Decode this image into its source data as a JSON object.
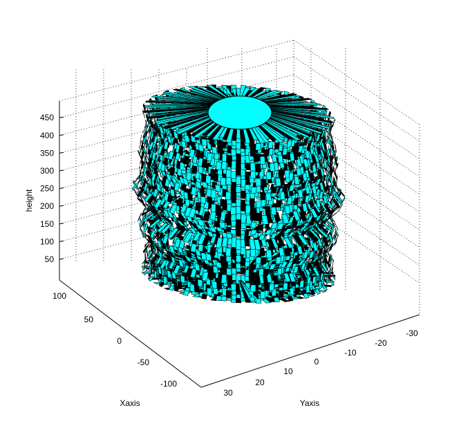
{
  "chart_data": {
    "type": "surface",
    "title": "",
    "xlabel": "Xaxis",
    "ylabel": "Yaxis",
    "zlabel": "height",
    "x_ticks": [
      100,
      50,
      0,
      -50,
      -100
    ],
    "y_ticks": [
      30,
      20,
      10,
      0,
      -10,
      -20,
      -30
    ],
    "z_ticks": [
      50,
      100,
      150,
      200,
      250,
      300,
      350,
      400,
      450
    ],
    "xlim": [
      -120,
      120
    ],
    "ylim": [
      -35,
      35
    ],
    "zlim": [
      0,
      500
    ],
    "grid": true,
    "colors": {
      "surface": "#00ffff",
      "edges": "#000000",
      "background": "#ffffff"
    },
    "profile": {
      "z": [
        0,
        10,
        20,
        40,
        60,
        80,
        100,
        120,
        140,
        160,
        180,
        200,
        220,
        240,
        260,
        280,
        300,
        320,
        340,
        360,
        380,
        400,
        420,
        440,
        460,
        480
      ],
      "radius": [
        12,
        95,
        92,
        92,
        93,
        88,
        90,
        96,
        98,
        95,
        85,
        92,
        100,
        104,
        98,
        96,
        97,
        95,
        98,
        96,
        95,
        92,
        90,
        92,
        94,
        20
      ]
    }
  }
}
